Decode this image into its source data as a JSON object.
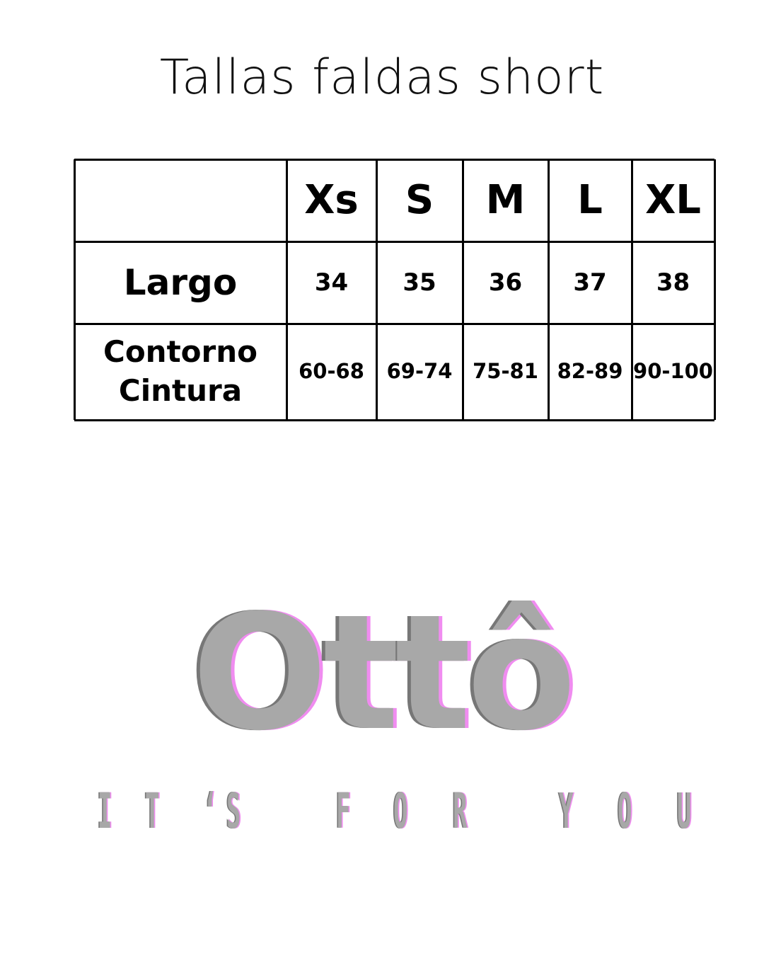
{
  "title": "Tallas faldas short",
  "table": {
    "sizes": [
      "Xs",
      "S",
      "M",
      "L",
      "XL"
    ],
    "rows": [
      {
        "label": "Largo",
        "values": [
          "34",
          "35",
          "36",
          "37",
          "38"
        ]
      },
      {
        "label_line1": "Contorno",
        "label_line2": "Cintura",
        "values": [
          "60-68",
          "69-74",
          "75-81",
          "82-89",
          "90-100"
        ]
      }
    ]
  },
  "logo": {
    "name": "Ottô",
    "tagline": "IT‘S FOR YOU",
    "colors": {
      "fill": "#a8a8a8",
      "shadow_left": "#777777",
      "shadow_right": "#f08cf0"
    }
  }
}
